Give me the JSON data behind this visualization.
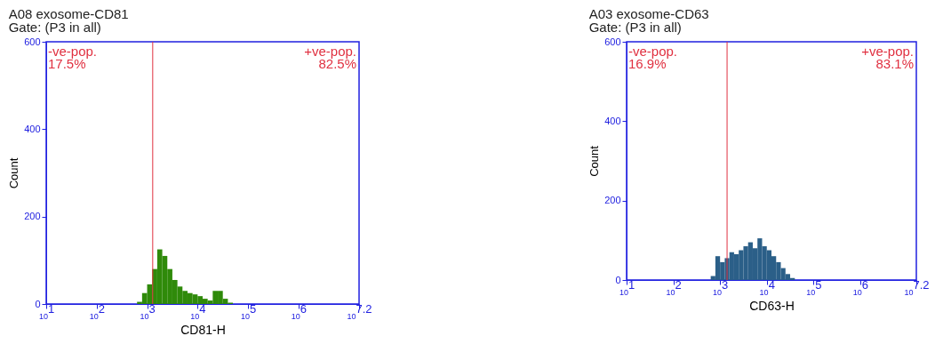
{
  "chart_data": [
    {
      "type": "histogram",
      "title": "A08 exosome-CD81",
      "subtitle": "Gate: (P3 in all)",
      "xlabel": "CD81-H",
      "ylabel": "Count",
      "log": "x",
      "bins": [
        631,
        794,
        1000,
        1259,
        1585,
        1995,
        2512,
        3162,
        3981,
        5012,
        6310,
        7943,
        10000,
        12589,
        15849,
        19953,
        25119,
        31623,
        39811,
        50119
      ],
      "values": [
        5,
        25,
        45,
        80,
        125,
        110,
        80,
        55,
        40,
        30,
        25,
        22,
        18,
        12,
        8,
        30,
        30,
        12,
        3
      ],
      "color": "#2f8a0a",
      "xlim": [
        10,
        15848932
      ],
      "xticks": [
        {
          "value": 10,
          "label": "10$^{1}$"
        },
        {
          "value": 100,
          "label": "10$^{2}$"
        },
        {
          "value": 1000,
          "label": "10$^{3}$"
        },
        {
          "value": 10000,
          "label": "10$^{4}$"
        },
        {
          "value": 100000,
          "label": "10$^{5}$"
        },
        {
          "value": 1000000,
          "label": "10$^{6}$"
        },
        {
          "value": 15848932,
          "label": "10$^{7.2}$"
        }
      ],
      "ylim": [
        0,
        600
      ],
      "yticks": [
        0,
        200,
        400,
        600
      ],
      "ref_lines": [
        {
          "axis": "x",
          "value": 1290,
          "color": "#e03040"
        }
      ],
      "annotations": [
        "-ve-pop.\n17.5%",
        "+ve-pop.\n82.5%"
      ]
    },
    {
      "type": "histogram",
      "title": "A03 exosome-CD63",
      "subtitle": "Gate: (P3 in all)",
      "xlabel": "CD63-H",
      "ylabel": "Count",
      "log": "x",
      "bins": [
        631,
        794,
        1000,
        1259,
        1585,
        1995,
        2512,
        3162,
        3981,
        5012,
        6310,
        7943,
        10000,
        12589,
        15849,
        19953,
        25119,
        31623,
        39811
      ],
      "values": [
        10,
        60,
        45,
        55,
        70,
        65,
        75,
        85,
        95,
        80,
        105,
        85,
        75,
        60,
        45,
        30,
        15,
        5
      ],
      "color": "#2b5f88",
      "xlim": [
        10,
        15848932
      ],
      "xticks": [
        {
          "value": 10,
          "label": "10$^{1}$"
        },
        {
          "value": 100,
          "label": "10$^{2}$"
        },
        {
          "value": 1000,
          "label": "10$^{3}$"
        },
        {
          "value": 10000,
          "label": "10$^{4}$"
        },
        {
          "value": 100000,
          "label": "10$^{5}$"
        },
        {
          "value": 1000000,
          "label": "10$^{6}$"
        },
        {
          "value": 15848932,
          "label": "10$^{7.2}$"
        }
      ],
      "ylim": [
        0,
        600
      ],
      "yticks": [
        0,
        200,
        400,
        600
      ],
      "ref_lines": [
        {
          "axis": "x",
          "value": 1413,
          "color": "#e03040"
        }
      ],
      "annotations": [
        "-ve-pop.\n16.9%",
        "+ve-pop.\n83.1%"
      ]
    }
  ]
}
